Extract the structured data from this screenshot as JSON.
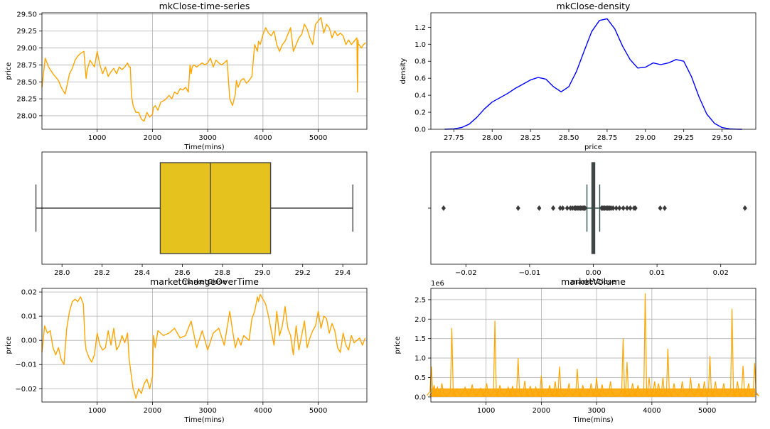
{
  "chart_data": [
    {
      "id": "ts",
      "type": "line",
      "title": "mkClose-time-series",
      "xlabel": "Time(mins)",
      "ylabel": "price",
      "xlim": [
        1,
        5880
      ],
      "ylim": [
        27.8,
        29.52
      ],
      "xticks": [
        1000,
        2000,
        3000,
        4000,
        5000,
        6000
      ],
      "yticks": [
        28.0,
        28.25,
        28.5,
        28.75,
        29.0,
        29.25,
        29.5
      ],
      "ytick_format": 2,
      "grid": true,
      "color": "#FFA500",
      "series": [
        {
          "name": "",
          "x": [
            1,
            60,
            120,
            200,
            300,
            350,
            420,
            500,
            550,
            600,
            650,
            700,
            760,
            800,
            820,
            870,
            950,
            1000,
            1050,
            1100,
            1150,
            1200,
            1250,
            1300,
            1350,
            1400,
            1450,
            1500,
            1550,
            1580,
            1600,
            1620,
            1650,
            1700,
            1750,
            1800,
            1850,
            1900,
            1950,
            2000,
            2020,
            2050,
            2100,
            2150,
            2200,
            2250,
            2300,
            2350,
            2400,
            2450,
            2500,
            2550,
            2600,
            2650,
            2680,
            2700,
            2720,
            2750,
            2800,
            2850,
            2900,
            2950,
            3000,
            3050,
            3100,
            3150,
            3200,
            3250,
            3300,
            3350,
            3400,
            3450,
            3500,
            3520,
            3550,
            3600,
            3650,
            3700,
            3750,
            3800,
            3850,
            3900,
            3920,
            3950,
            4000,
            4050,
            4100,
            4150,
            4200,
            4250,
            4300,
            4350,
            4400,
            4450,
            4500,
            4550,
            4600,
            4650,
            4700,
            4750,
            4800,
            4850,
            4900,
            4950,
            5000,
            5050,
            5100,
            5150,
            5200,
            5250,
            5300,
            5350,
            5400,
            5450,
            5500,
            5550,
            5600,
            5650,
            5700,
            5710,
            5720,
            5725,
            5740,
            5780,
            5820,
            5860
          ],
          "y": [
            28.42,
            28.85,
            28.72,
            28.62,
            28.52,
            28.42,
            28.32,
            28.62,
            28.7,
            28.82,
            28.88,
            28.92,
            28.95,
            28.55,
            28.68,
            28.82,
            28.72,
            28.95,
            28.75,
            28.62,
            28.72,
            28.58,
            28.65,
            28.7,
            28.62,
            28.72,
            28.68,
            28.72,
            28.78,
            28.72,
            28.72,
            28.3,
            28.15,
            28.05,
            28.05,
            27.95,
            27.92,
            28.05,
            27.98,
            28.02,
            28.12,
            28.15,
            28.08,
            28.2,
            28.22,
            28.25,
            28.3,
            28.25,
            28.35,
            28.32,
            28.4,
            28.38,
            28.42,
            28.35,
            28.75,
            28.62,
            28.72,
            28.75,
            28.72,
            28.75,
            28.78,
            28.75,
            28.78,
            28.85,
            28.72,
            28.82,
            28.78,
            28.75,
            28.78,
            28.82,
            28.25,
            28.15,
            28.32,
            28.52,
            28.42,
            28.52,
            28.55,
            28.48,
            28.52,
            28.58,
            29.05,
            28.95,
            29.1,
            29.05,
            29.2,
            29.3,
            29.22,
            29.18,
            29.25,
            29.05,
            28.95,
            29.05,
            29.1,
            29.2,
            29.3,
            28.95,
            29.05,
            29.15,
            29.2,
            29.35,
            29.28,
            29.15,
            29.05,
            29.35,
            29.4,
            29.45,
            29.22,
            29.35,
            29.3,
            29.15,
            29.25,
            29.18,
            29.22,
            29.18,
            29.05,
            29.12,
            29.05,
            29.1,
            29.15,
            28.35,
            29.12,
            29.05,
            29.05,
            29.0,
            29.05,
            29.08
          ]
        }
      ]
    },
    {
      "id": "density",
      "type": "line",
      "title": "mkClose-density",
      "xlabel": "price",
      "ylabel": "density",
      "xlim": [
        27.6,
        29.72
      ],
      "ylim": [
        0,
        1.37
      ],
      "xticks": [
        27.75,
        28.0,
        28.25,
        28.5,
        28.75,
        29.0,
        29.25,
        29.5
      ],
      "yticks": [
        0.0,
        0.2,
        0.4,
        0.6,
        0.8,
        1.0,
        1.2
      ],
      "xtick_format": 2,
      "ytick_format": 1,
      "grid": false,
      "color": "#0000FF",
      "series": [
        {
          "name": "",
          "x": [
            27.69,
            27.75,
            27.8,
            27.85,
            27.9,
            27.95,
            28.0,
            28.05,
            28.1,
            28.15,
            28.2,
            28.25,
            28.3,
            28.35,
            28.4,
            28.45,
            28.5,
            28.55,
            28.6,
            28.65,
            28.7,
            28.75,
            28.8,
            28.85,
            28.9,
            28.95,
            29.0,
            29.05,
            29.1,
            29.15,
            29.2,
            29.25,
            29.3,
            29.35,
            29.4,
            29.45,
            29.5,
            29.55,
            29.6,
            29.63
          ],
          "y": [
            0.0,
            0.005,
            0.02,
            0.06,
            0.14,
            0.24,
            0.32,
            0.37,
            0.42,
            0.48,
            0.53,
            0.58,
            0.61,
            0.59,
            0.5,
            0.44,
            0.5,
            0.68,
            0.92,
            1.15,
            1.28,
            1.3,
            1.18,
            0.98,
            0.82,
            0.72,
            0.73,
            0.78,
            0.76,
            0.78,
            0.82,
            0.8,
            0.62,
            0.38,
            0.18,
            0.07,
            0.02,
            0.005,
            0.001,
            0.0
          ]
        }
      ]
    },
    {
      "id": "box1",
      "type": "box",
      "xlabel": "marketClose",
      "xlim": [
        27.9,
        29.52
      ],
      "xticks": [
        28.0,
        28.2,
        28.4,
        28.6,
        28.8,
        29.0,
        29.2,
        29.4
      ],
      "xtick_format": 1,
      "color": "#E6C21F",
      "stats": {
        "min": 27.87,
        "q1": 28.49,
        "median": 28.74,
        "q3": 29.04,
        "max": 29.45
      },
      "fliers": []
    },
    {
      "id": "box2",
      "type": "box",
      "xlabel": "marketClose",
      "xlim": [
        -0.0255,
        0.0255
      ],
      "xticks": [
        -0.02,
        -0.01,
        0.0,
        0.01,
        0.02
      ],
      "xtick_format": 2,
      "color": "#2F4F4F",
      "stats": {
        "min": -0.001,
        "q1": -0.0002,
        "median": 0.0,
        "q3": 0.0002,
        "max": 0.001
      },
      "fliers": [
        -0.0235,
        -0.0118,
        -0.0085,
        -0.0063,
        -0.0052,
        -0.0048,
        -0.0041,
        -0.0036,
        -0.0033,
        -0.003,
        -0.0028,
        -0.0026,
        -0.0024,
        -0.0022,
        -0.002,
        -0.0018,
        -0.0016,
        -0.0014,
        -0.0013,
        0.0013,
        0.0014,
        0.0016,
        0.0018,
        0.002,
        0.0022,
        0.0024,
        0.0026,
        0.0028,
        0.0031,
        0.0036,
        0.0041,
        0.0047,
        0.0053,
        0.0058,
        0.0064,
        0.0066,
        0.0105,
        0.0112,
        0.0238
      ]
    },
    {
      "id": "change",
      "type": "line",
      "title": "marketChangeOverTime",
      "xlabel": "Time(mins)",
      "ylabel": "price",
      "xlim": [
        1,
        5880
      ],
      "ylim": [
        -0.0255,
        0.0215
      ],
      "xticks": [
        1000,
        2000,
        3000,
        4000,
        5000,
        6000
      ],
      "yticks": [
        -0.02,
        -0.01,
        0.0,
        0.01,
        0.02
      ],
      "ytick_format": 2,
      "grid": true,
      "color": "#FFA500",
      "series": [
        {
          "name": "",
          "x": [
            1,
            50,
            100,
            150,
            200,
            250,
            300,
            350,
            400,
            450,
            500,
            550,
            600,
            650,
            700,
            750,
            780,
            800,
            850,
            900,
            950,
            1000,
            1050,
            1100,
            1150,
            1200,
            1250,
            1300,
            1350,
            1400,
            1450,
            1500,
            1550,
            1580,
            1620,
            1650,
            1680,
            1700,
            1750,
            1800,
            1850,
            1900,
            1950,
            2000,
            2020,
            2050,
            2100,
            2200,
            2300,
            2400,
            2500,
            2600,
            2700,
            2800,
            2900,
            3000,
            3100,
            3200,
            3300,
            3400,
            3450,
            3500,
            3550,
            3600,
            3650,
            3700,
            3750,
            3800,
            3850,
            3900,
            3920,
            3950,
            4000,
            4050,
            4100,
            4150,
            4200,
            4250,
            4300,
            4350,
            4400,
            4450,
            4500,
            4550,
            4600,
            4650,
            4700,
            4750,
            4800,
            4850,
            4900,
            4950,
            5000,
            5050,
            5100,
            5150,
            5200,
            5250,
            5300,
            5350,
            5400,
            5450,
            5500,
            5550,
            5600,
            5650,
            5700,
            5750,
            5800,
            5850
          ],
          "y": [
            -0.005,
            0.006,
            0.003,
            0.004,
            -0.003,
            -0.006,
            -0.003,
            -0.008,
            -0.01,
            0.005,
            0.012,
            0.016,
            0.017,
            0.016,
            0.018,
            0.015,
            0.0,
            -0.004,
            -0.007,
            -0.009,
            -0.006,
            0.003,
            -0.002,
            -0.004,
            -0.003,
            0.004,
            -0.002,
            0.005,
            -0.004,
            -0.002,
            0.002,
            -0.001,
            0.003,
            -0.008,
            -0.015,
            -0.02,
            -0.022,
            -0.024,
            -0.02,
            -0.022,
            -0.018,
            -0.016,
            -0.02,
            -0.015,
            0.002,
            -0.003,
            0.004,
            0.002,
            0.003,
            0.005,
            0.001,
            0.002,
            0.008,
            -0.003,
            0.004,
            -0.004,
            0.003,
            0.005,
            -0.002,
            0.012,
            0.004,
            -0.003,
            0.001,
            -0.002,
            0.002,
            0.001,
            0.0,
            0.009,
            0.012,
            0.018,
            0.016,
            0.019,
            0.017,
            0.015,
            0.01,
            0.004,
            -0.002,
            0.012,
            0.002,
            0.006,
            0.014,
            0.005,
            0.002,
            -0.006,
            0.006,
            -0.004,
            0.002,
            0.008,
            -0.003,
            0.001,
            0.004,
            0.006,
            0.012,
            0.005,
            0.01,
            0.009,
            0.003,
            0.007,
            0.004,
            -0.003,
            -0.005,
            0.003,
            -0.002,
            -0.004,
            0.002,
            -0.001,
            0.0,
            0.001,
            -0.002,
            0.001
          ]
        }
      ]
    },
    {
      "id": "volume",
      "type": "line",
      "title": "marketVolume",
      "xlabel": "Time(mins)",
      "ylabel": "price",
      "offset_label": "1e6",
      "xlim": [
        1,
        5880
      ],
      "ylim": [
        -0.13,
        2.79
      ],
      "xticks": [
        1000,
        2000,
        3000,
        4000,
        5000,
        6000
      ],
      "yticks": [
        0.0,
        0.5,
        1.0,
        1.5,
        2.0,
        2.5
      ],
      "ytick_format": 1,
      "grid": true,
      "color": "#FFA500",
      "baseline": 0.08,
      "spikes": [
        [
          10,
          0.78
        ],
        [
          60,
          0.3
        ],
        [
          120,
          0.25
        ],
        [
          200,
          0.35
        ],
        [
          380,
          1.77
        ],
        [
          470,
          0.2
        ],
        [
          620,
          0.25
        ],
        [
          750,
          0.32
        ],
        [
          900,
          0.22
        ],
        [
          1010,
          0.35
        ],
        [
          1160,
          1.96
        ],
        [
          1250,
          0.3
        ],
        [
          1400,
          0.25
        ],
        [
          1480,
          0.28
        ],
        [
          1580,
          1.0
        ],
        [
          1700,
          0.42
        ],
        [
          1800,
          0.28
        ],
        [
          1900,
          0.25
        ],
        [
          2000,
          0.55
        ],
        [
          2150,
          0.3
        ],
        [
          2250,
          0.4
        ],
        [
          2330,
          0.78
        ],
        [
          2500,
          0.35
        ],
        [
          2650,
          0.72
        ],
        [
          2750,
          0.3
        ],
        [
          2900,
          0.35
        ],
        [
          3000,
          0.5
        ],
        [
          3100,
          0.32
        ],
        [
          3250,
          0.4
        ],
        [
          3480,
          1.5
        ],
        [
          3550,
          0.9
        ],
        [
          3650,
          0.35
        ],
        [
          3750,
          0.3
        ],
        [
          3880,
          2.66
        ],
        [
          3950,
          0.5
        ],
        [
          4050,
          0.4
        ],
        [
          4120,
          0.35
        ],
        [
          4200,
          0.5
        ],
        [
          4290,
          1.24
        ],
        [
          4400,
          0.35
        ],
        [
          4550,
          0.4
        ],
        [
          4700,
          0.5
        ],
        [
          4850,
          0.35
        ],
        [
          4950,
          0.4
        ],
        [
          5050,
          1.05
        ],
        [
          5150,
          0.4
        ],
        [
          5300,
          0.35
        ],
        [
          5450,
          2.27
        ],
        [
          5550,
          0.4
        ],
        [
          5650,
          0.8
        ],
        [
          5750,
          0.35
        ],
        [
          5860,
          0.87
        ]
      ]
    }
  ]
}
